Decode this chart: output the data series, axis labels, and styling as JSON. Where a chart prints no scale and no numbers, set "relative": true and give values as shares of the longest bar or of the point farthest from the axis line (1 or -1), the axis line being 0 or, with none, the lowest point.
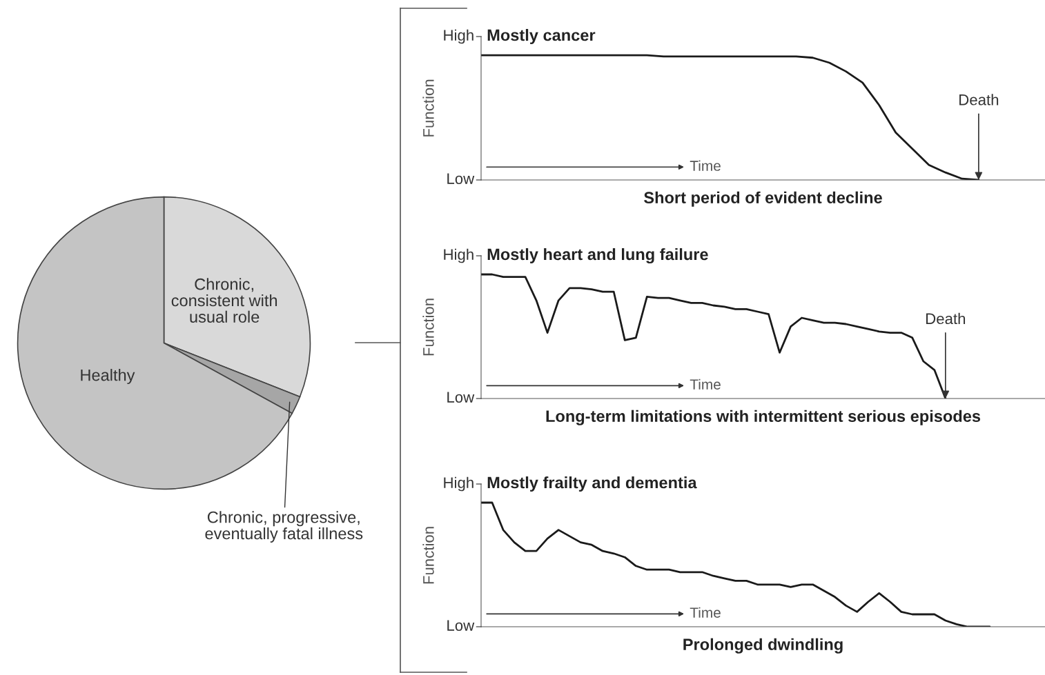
{
  "chart_data": [
    {
      "type": "pie",
      "categories": [
        "Chronic,\nconsistent with\nusual role",
        "Chronic, progressive,\neventually fatal illness",
        "Healthy"
      ],
      "values": [
        31,
        2,
        67
      ],
      "colors": [
        "#d9d9d9",
        "#a6a6a6",
        "#c4c4c4"
      ]
    },
    {
      "type": "line",
      "title": "Mostly cancer",
      "xlabel": "Short period of evident decline",
      "ylabel": "Function",
      "relative": true,
      "categories": [
        null,
        null,
        null,
        null,
        null,
        null,
        null,
        null,
        null,
        null,
        null,
        null,
        null,
        null,
        null,
        null,
        null,
        null,
        null,
        null,
        null,
        null,
        null,
        null,
        null,
        null,
        null,
        null,
        null,
        null,
        null,
        null,
        null,
        null,
        null
      ],
      "values": [
        1,
        1,
        1,
        1,
        1,
        1,
        1,
        1,
        1,
        1,
        1,
        0.99,
        0.99,
        0.99,
        0.99,
        0.99,
        0.99,
        0.99,
        0.99,
        0.99,
        0.98,
        0.94,
        0.87,
        0.78,
        0.6,
        0.38,
        0.25,
        0.12,
        0.06,
        0.01,
        0,
        null,
        null,
        null,
        null
      ],
      "color": "#1a1a1a",
      "annotations": [
        "High",
        "Low",
        "Time",
        {
          "text": "Death",
          "y": 0
        }
      ]
    },
    {
      "type": "line",
      "title": "Mostly heart and lung failure",
      "xlabel": "Long-term limitations with intermittent serious episodes",
      "ylabel": "Function",
      "relative": true,
      "categories": [
        null,
        null,
        null,
        null,
        null,
        null,
        null,
        null,
        null,
        null,
        null,
        null,
        null,
        null,
        null,
        null,
        null,
        null,
        null,
        null,
        null,
        null,
        null,
        null,
        null,
        null,
        null,
        null,
        null,
        null,
        null,
        null,
        null,
        null,
        null,
        null,
        null,
        null,
        null,
        null,
        null,
        null,
        null,
        null,
        null,
        null,
        null,
        null,
        null,
        null,
        null,
        null
      ],
      "values": [
        1,
        1,
        0.98,
        0.98,
        0.98,
        0.79,
        0.53,
        0.79,
        0.89,
        0.89,
        0.88,
        0.86,
        0.86,
        0.47,
        0.49,
        0.82,
        0.81,
        0.81,
        0.79,
        0.77,
        0.77,
        0.75,
        0.74,
        0.72,
        0.72,
        0.7,
        0.68,
        0.37,
        0.58,
        0.65,
        0.63,
        0.61,
        0.61,
        0.6,
        0.58,
        0.56,
        0.54,
        0.53,
        0.53,
        0.49,
        0.3,
        0.23,
        0,
        null,
        null,
        null,
        null,
        null,
        null,
        null,
        null,
        null
      ],
      "color": "#1a1a1a",
      "annotations": [
        "High",
        "Low",
        "Time",
        {
          "text": "Death",
          "y": 0
        }
      ]
    },
    {
      "type": "line",
      "title": "Mostly frailty and dementia",
      "xlabel": "Prolonged dwindling",
      "ylabel": "Function",
      "relative": true,
      "categories": [
        null,
        null,
        null,
        null,
        null,
        null,
        null,
        null,
        null,
        null,
        null,
        null,
        null,
        null,
        null,
        null,
        null,
        null,
        null,
        null,
        null,
        null,
        null,
        null,
        null,
        null,
        null,
        null,
        null,
        null,
        null,
        null,
        null,
        null,
        null,
        null,
        null,
        null,
        null,
        null,
        null,
        null,
        null,
        null,
        null,
        null,
        null,
        null,
        null,
        null,
        null,
        null
      ],
      "values": [
        1,
        1,
        0.78,
        0.68,
        0.61,
        0.61,
        0.71,
        0.78,
        0.73,
        0.68,
        0.66,
        0.61,
        0.59,
        0.56,
        0.49,
        0.46,
        0.46,
        0.46,
        0.44,
        0.44,
        0.44,
        0.41,
        0.39,
        0.37,
        0.37,
        0.34,
        0.34,
        0.34,
        0.32,
        0.34,
        0.34,
        0.29,
        0.24,
        0.17,
        0.12,
        0.2,
        0.27,
        0.2,
        0.12,
        0.1,
        0.1,
        0.1,
        0.05,
        0.02,
        0,
        0,
        0,
        null,
        null,
        null,
        null,
        null
      ],
      "color": "#1a1a1a",
      "annotations": [
        "High",
        "Low",
        "Time"
      ]
    }
  ]
}
